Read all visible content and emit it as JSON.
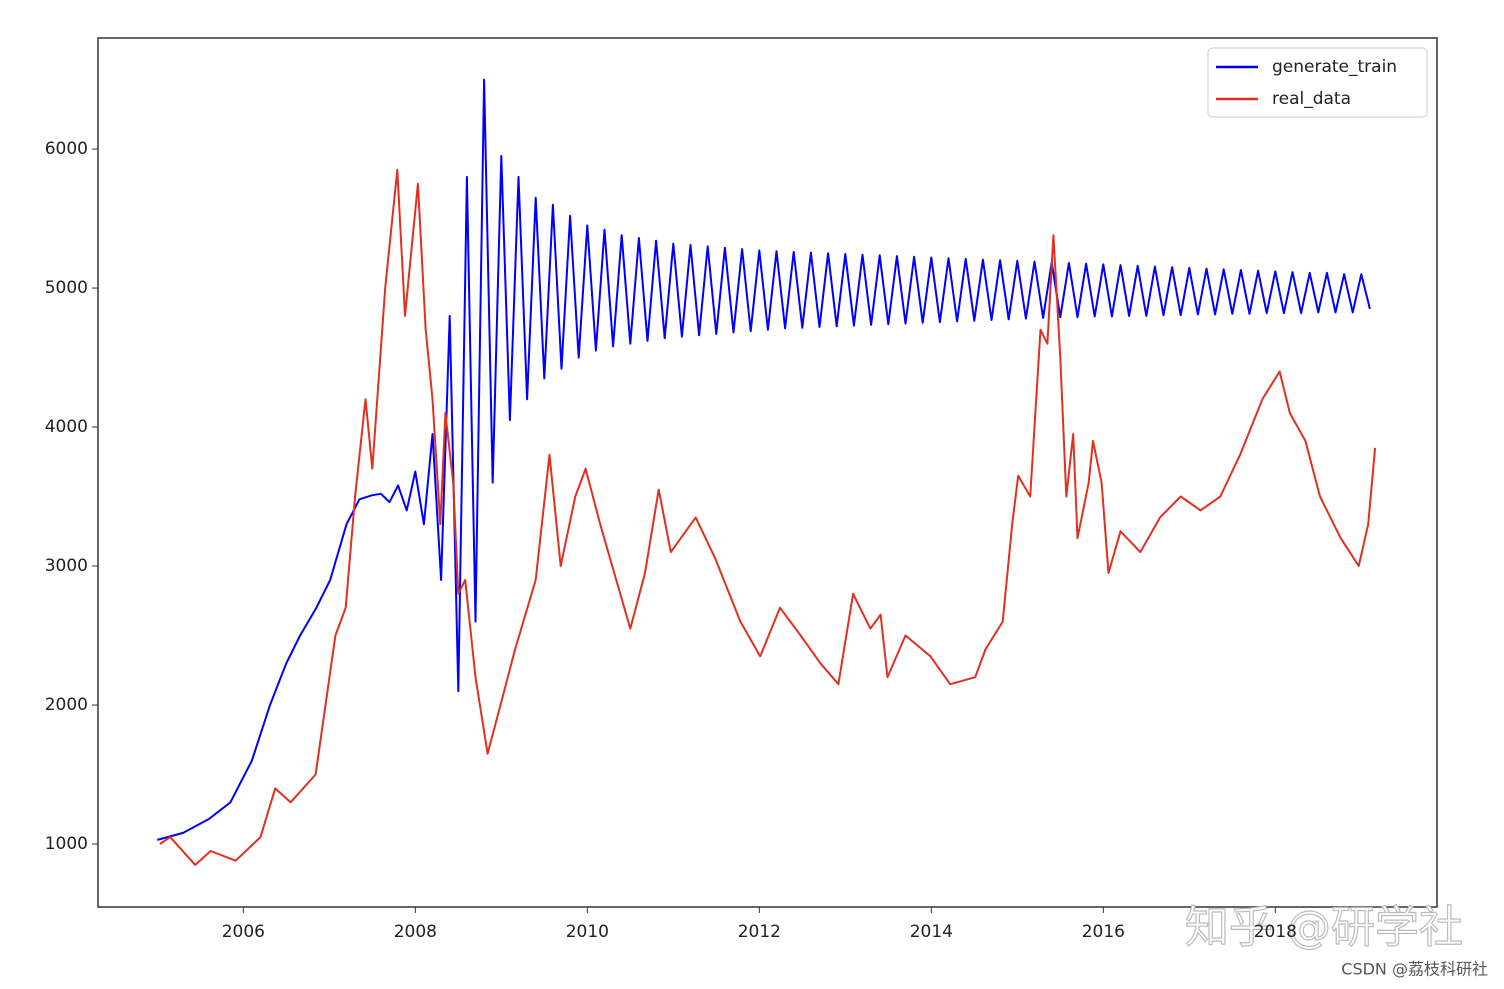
{
  "chart_data": {
    "type": "line",
    "xlim": [
      2004.31,
      2019.88
    ],
    "ylim": [
      547,
      6799
    ],
    "xticks": [
      2006,
      2008,
      2010,
      2012,
      2014,
      2016,
      2018
    ],
    "yticks": [
      1000,
      2000,
      3000,
      4000,
      5000,
      6000
    ],
    "legend": "upper right",
    "series": [
      {
        "name": "generate_train",
        "color": "#0000ff",
        "x": [
          2005.0,
          2005.3,
          2005.6,
          2005.85,
          2006.1,
          2006.31,
          2006.5,
          2006.66,
          2006.85,
          2007.01,
          2007.2,
          2007.35,
          2007.5,
          2007.6,
          2007.7,
          2007.8,
          2007.9,
          2008.0,
          2008.1,
          2008.2,
          2008.3,
          2008.4,
          2008.5,
          2008.6,
          2008.7,
          2008.8,
          2008.9,
          2009.0,
          2009.1,
          2009.2,
          2009.3,
          2009.4,
          2009.5,
          2009.6,
          2009.7,
          2009.8,
          2009.9,
          2010.0,
          2010.1,
          2010.2,
          2010.3,
          2010.4,
          2010.5,
          2010.6,
          2010.7,
          2010.8,
          2010.9,
          2011.0,
          2011.1,
          2011.2,
          2011.3,
          2011.4,
          2011.5,
          2011.6,
          2011.7,
          2011.8,
          2011.9,
          2012.0,
          2012.1,
          2012.2,
          2012.3,
          2012.4,
          2012.5,
          2012.6,
          2012.7,
          2012.8,
          2012.9,
          2013.0,
          2013.1,
          2013.2,
          2013.3,
          2013.4,
          2013.5,
          2013.6,
          2013.7,
          2013.8,
          2013.9,
          2014.0,
          2014.1,
          2014.2,
          2014.3,
          2014.4,
          2014.5,
          2014.6,
          2014.7,
          2014.8,
          2014.9,
          2015.0,
          2015.1,
          2015.2,
          2015.3,
          2015.4,
          2015.5,
          2015.6,
          2015.7,
          2015.8,
          2015.9,
          2016.0,
          2016.1,
          2016.2,
          2016.3,
          2016.4,
          2016.5,
          2016.6,
          2016.7,
          2016.8,
          2016.9,
          2017.0,
          2017.1,
          2017.2,
          2017.3,
          2017.4,
          2017.5,
          2017.6,
          2017.7,
          2017.8,
          2017.9,
          2018.0,
          2018.1,
          2018.2,
          2018.3,
          2018.4,
          2018.5,
          2018.6,
          2018.7,
          2018.8,
          2018.9,
          2019.0,
          2019.1
        ],
        "values": [
          1030,
          1080,
          1180,
          1300,
          1600,
          2000,
          2300,
          2500,
          2700,
          2900,
          3300,
          3480,
          3510,
          3520,
          3460,
          3580,
          3400,
          3680,
          3300,
          3950,
          2900,
          4800,
          2100,
          5800,
          2600,
          6500,
          3600,
          5950,
          4050,
          5800,
          4200,
          5650,
          4350,
          5600,
          4420,
          5520,
          4500,
          5450,
          4550,
          5420,
          4580,
          5380,
          4600,
          5360,
          4620,
          5340,
          4640,
          5320,
          4650,
          5310,
          4660,
          5300,
          4670,
          5290,
          4680,
          5280,
          4690,
          5270,
          4700,
          5265,
          4710,
          5260,
          4715,
          5255,
          4720,
          5250,
          4725,
          5245,
          4730,
          5240,
          4735,
          5235,
          4740,
          5230,
          4745,
          5225,
          4750,
          5220,
          4755,
          5215,
          4760,
          5210,
          4765,
          5205,
          4770,
          5200,
          4775,
          5195,
          4780,
          5190,
          4785,
          5185,
          4790,
          5180,
          4790,
          5175,
          4795,
          5170,
          4795,
          5165,
          4800,
          5160,
          4800,
          5155,
          4805,
          5150,
          4805,
          5145,
          4810,
          5140,
          4810,
          5135,
          4815,
          5130,
          4815,
          5125,
          4820,
          5120,
          4820,
          5115,
          4820,
          5110,
          4825,
          5110,
          4825,
          5100,
          4825,
          5100,
          4850
        ]
      },
      {
        "name": "real_data",
        "color": "#e03020",
        "x": [
          2005.03,
          2005.15,
          2005.44,
          2005.62,
          2005.91,
          2006.2,
          2006.37,
          2006.55,
          2006.84,
          2007.07,
          2007.19,
          2007.3,
          2007.42,
          2007.5,
          2007.65,
          2007.79,
          2007.88,
          2008.03,
          2008.12,
          2008.2,
          2008.29,
          2008.35,
          2008.44,
          2008.5,
          2008.58,
          2008.7,
          2008.84,
          2008.99,
          2009.16,
          2009.4,
          2009.56,
          2009.69,
          2009.86,
          2009.98,
          2010.15,
          2010.5,
          2010.67,
          2010.83,
          2010.97,
          2011.26,
          2011.49,
          2011.78,
          2012.01,
          2012.24,
          2012.48,
          2012.71,
          2012.92,
          2013.09,
          2013.29,
          2013.41,
          2013.49,
          2013.7,
          2013.99,
          2014.22,
          2014.51,
          2014.63,
          2014.83,
          2014.94,
          2015.01,
          2015.15,
          2015.27,
          2015.35,
          2015.42,
          2015.5,
          2015.57,
          2015.65,
          2015.7,
          2015.83,
          2015.88,
          2015.98,
          2016.06,
          2016.2,
          2016.43,
          2016.66,
          2016.9,
          2017.13,
          2017.36,
          2017.59,
          2017.85,
          2018.05,
          2018.17,
          2018.35,
          2018.52,
          2018.76,
          2018.97,
          2019.08,
          2019.16
        ],
        "values": [
          1000,
          1050,
          850,
          950,
          880,
          1050,
          1400,
          1300,
          1500,
          2500,
          2700,
          3500,
          4200,
          3700,
          5000,
          5850,
          4800,
          5750,
          4700,
          4200,
          3300,
          4100,
          3600,
          2800,
          2900,
          2200,
          1650,
          2000,
          2400,
          2900,
          3800,
          3000,
          3500,
          3700,
          3300,
          2550,
          2950,
          3550,
          3100,
          3350,
          3050,
          2600,
          2350,
          2700,
          2500,
          2300,
          2150,
          2800,
          2550,
          2650,
          2200,
          2500,
          2350,
          2150,
          2200,
          2400,
          2600,
          3300,
          3650,
          3500,
          4700,
          4600,
          5380,
          4500,
          3500,
          3950,
          3200,
          3600,
          3900,
          3600,
          2950,
          3250,
          3100,
          3350,
          3500,
          3400,
          3500,
          3800,
          4200,
          4400,
          4100,
          3900,
          3500,
          3200,
          3000,
          3300,
          3850
        ]
      }
    ]
  },
  "watermarks": [
    "知乎 @研学社",
    "CSDN @荔枝科研社"
  ]
}
